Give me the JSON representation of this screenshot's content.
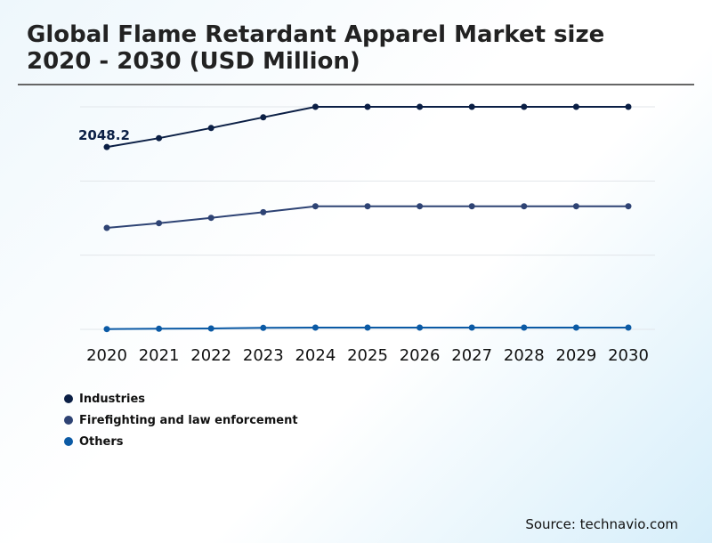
{
  "chart_data": {
    "type": "line",
    "title": "Global Flame Retardant Apparel Market size 2020 - 2030 (USD Million)",
    "x": [
      "2020",
      "2021",
      "2022",
      "2023",
      "2024",
      "2025",
      "2026",
      "2027",
      "2028",
      "2029",
      "2030"
    ],
    "ylim": [
      0,
      2500
    ],
    "grid": true,
    "legend_position": "bottom-left",
    "series": [
      {
        "name": "Industries",
        "color": "#0b1f45",
        "values": [
          2048.2,
          2148,
          2262,
          2382,
          2500,
          2500,
          2500,
          2500,
          2500,
          2500,
          2500
        ]
      },
      {
        "name": "Firefighting and law enforcement",
        "color": "#2e4374",
        "values": [
          1140,
          1193,
          1253,
          1316,
          1383,
          1383,
          1383,
          1383,
          1383,
          1383,
          1383
        ]
      },
      {
        "name": "Others",
        "color": "#0b5aa5",
        "values": [
          3,
          7,
          10,
          17,
          20,
          20,
          20,
          20,
          20,
          20,
          20
        ]
      }
    ],
    "annotations": [
      {
        "series": 0,
        "x": "2020",
        "label": "2048.2"
      }
    ]
  },
  "source": "Source: technavio.com"
}
